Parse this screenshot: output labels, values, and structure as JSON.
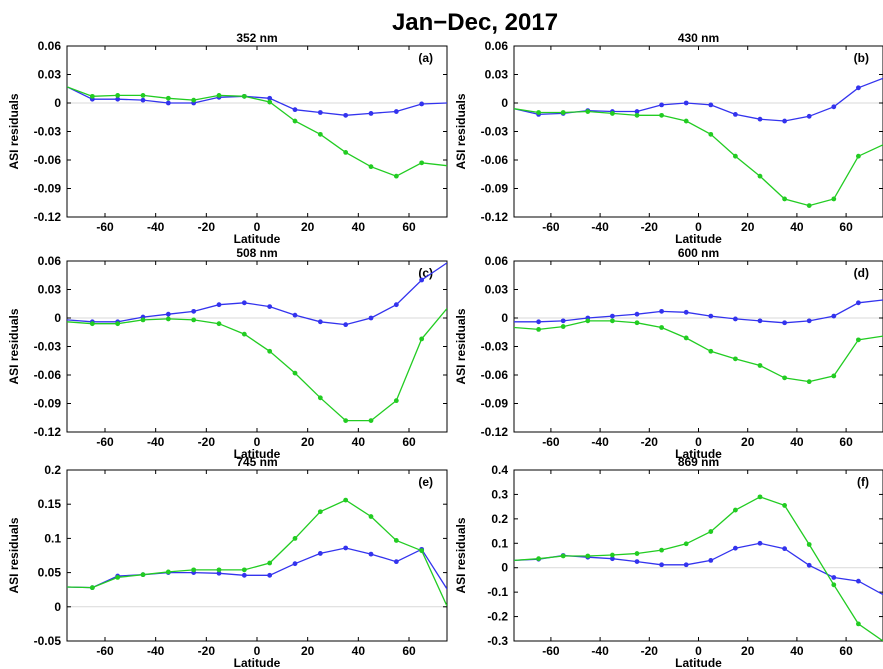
{
  "figure_title": "Jan−Dec, 2017",
  "series_colors": {
    "blue": "#3333ee",
    "green": "#22cc22"
  },
  "chart_data": [
    {
      "type": "line",
      "title": "352 nm",
      "panel_label": "(a)",
      "xlabel": "Latitude",
      "ylabel": "ASI residuals",
      "xlim": [
        -75,
        75
      ],
      "ylim": [
        -0.12,
        0.06
      ],
      "xticks": [
        -60,
        -40,
        -20,
        0,
        20,
        40,
        60
      ],
      "yticks": [
        -0.12,
        -0.09,
        -0.06,
        -0.03,
        0,
        0.03,
        0.06
      ],
      "ytick_labels": [
        "-0.12",
        "-0.09",
        "-0.06",
        "-0.03",
        "0",
        "0.03",
        "0.06"
      ],
      "x": [
        -75,
        -65,
        -55,
        -45,
        -35,
        -25,
        -15,
        -5,
        5,
        15,
        25,
        35,
        45,
        55,
        65,
        75
      ],
      "series": [
        {
          "color": "blue",
          "values": [
            0.017,
            0.004,
            0.004,
            0.003,
            0.0,
            0.0,
            0.006,
            0.007,
            0.005,
            -0.007,
            -0.01,
            -0.013,
            -0.011,
            -0.009,
            -0.001,
            0.0
          ]
        },
        {
          "color": "green",
          "values": [
            0.017,
            0.007,
            0.008,
            0.008,
            0.005,
            0.003,
            0.008,
            0.007,
            0.001,
            -0.019,
            -0.033,
            -0.052,
            -0.067,
            -0.077,
            -0.063,
            -0.066
          ]
        }
      ]
    },
    {
      "type": "line",
      "title": "430 nm",
      "panel_label": "(b)",
      "xlabel": "Latitude",
      "ylabel": "ASI residuals",
      "xlim": [
        -75,
        75
      ],
      "ylim": [
        -0.12,
        0.06
      ],
      "xticks": [
        -60,
        -40,
        -20,
        0,
        20,
        40,
        60
      ],
      "yticks": [
        -0.12,
        -0.09,
        -0.06,
        -0.03,
        0,
        0.03,
        0.06
      ],
      "ytick_labels": [
        "-0.12",
        "-0.09",
        "-0.06",
        "-0.03",
        "0",
        "0.03",
        "0.06"
      ],
      "x": [
        -75,
        -65,
        -55,
        -45,
        -35,
        -25,
        -15,
        -5,
        5,
        15,
        25,
        35,
        45,
        55,
        65,
        75
      ],
      "series": [
        {
          "color": "blue",
          "values": [
            -0.006,
            -0.012,
            -0.011,
            -0.008,
            -0.009,
            -0.009,
            -0.002,
            0.0,
            -0.002,
            -0.012,
            -0.017,
            -0.019,
            -0.014,
            -0.004,
            0.016,
            0.026
          ]
        },
        {
          "color": "green",
          "values": [
            -0.006,
            -0.01,
            -0.01,
            -0.009,
            -0.011,
            -0.013,
            -0.013,
            -0.019,
            -0.033,
            -0.056,
            -0.077,
            -0.101,
            -0.108,
            -0.101,
            -0.056,
            -0.044
          ]
        }
      ]
    },
    {
      "type": "line",
      "title": "508 nm",
      "panel_label": "(c)",
      "xlabel": "Latitude",
      "ylabel": "ASI residuals",
      "xlim": [
        -75,
        75
      ],
      "ylim": [
        -0.12,
        0.06
      ],
      "xticks": [
        -60,
        -40,
        -20,
        0,
        20,
        40,
        60
      ],
      "yticks": [
        -0.12,
        -0.09,
        -0.06,
        -0.03,
        0,
        0.03,
        0.06
      ],
      "ytick_labels": [
        "-0.12",
        "-0.09",
        "-0.06",
        "-0.03",
        "0",
        "0.03",
        "0.06"
      ],
      "x": [
        -75,
        -65,
        -55,
        -45,
        -35,
        -25,
        -15,
        -5,
        5,
        15,
        25,
        35,
        45,
        55,
        65,
        75
      ],
      "series": [
        {
          "color": "blue",
          "values": [
            -0.002,
            -0.004,
            -0.004,
            0.001,
            0.004,
            0.007,
            0.014,
            0.016,
            0.012,
            0.003,
            -0.004,
            -0.007,
            0.0,
            0.014,
            0.04,
            0.058
          ]
        },
        {
          "color": "green",
          "values": [
            -0.004,
            -0.006,
            -0.006,
            -0.002,
            -0.001,
            -0.002,
            -0.006,
            -0.017,
            -0.035,
            -0.058,
            -0.084,
            -0.108,
            -0.108,
            -0.087,
            -0.022,
            0.01
          ]
        }
      ]
    },
    {
      "type": "line",
      "title": "600 nm",
      "panel_label": "(d)",
      "xlabel": "Latitude",
      "ylabel": "ASI residuals",
      "xlim": [
        -75,
        75
      ],
      "ylim": [
        -0.12,
        0.06
      ],
      "xticks": [
        -60,
        -40,
        -20,
        0,
        20,
        40,
        60
      ],
      "yticks": [
        -0.12,
        -0.09,
        -0.06,
        -0.03,
        0,
        0.03,
        0.06
      ],
      "ytick_labels": [
        "-0.12",
        "-0.09",
        "-0.06",
        "-0.03",
        "0",
        "0.03",
        "0.06"
      ],
      "x": [
        -75,
        -65,
        -55,
        -45,
        -35,
        -25,
        -15,
        -5,
        5,
        15,
        25,
        35,
        45,
        55,
        65,
        75
      ],
      "series": [
        {
          "color": "blue",
          "values": [
            -0.004,
            -0.004,
            -0.003,
            0.0,
            0.002,
            0.004,
            0.007,
            0.006,
            0.002,
            -0.001,
            -0.003,
            -0.005,
            -0.003,
            0.002,
            0.016,
            0.019
          ]
        },
        {
          "color": "green",
          "values": [
            -0.01,
            -0.012,
            -0.009,
            -0.003,
            -0.003,
            -0.005,
            -0.01,
            -0.021,
            -0.035,
            -0.043,
            -0.05,
            -0.063,
            -0.067,
            -0.061,
            -0.023,
            -0.019
          ]
        }
      ]
    },
    {
      "type": "line",
      "title": "745 nm",
      "panel_label": "(e)",
      "xlabel": "Latitude",
      "ylabel": "ASI residuals",
      "xlim": [
        -75,
        75
      ],
      "ylim": [
        -0.05,
        0.2
      ],
      "xticks": [
        -60,
        -40,
        -20,
        0,
        20,
        40,
        60
      ],
      "yticks": [
        -0.05,
        0,
        0.05,
        0.1,
        0.15,
        0.2
      ],
      "ytick_labels": [
        "-0.05",
        "0",
        "0.05",
        "0.1",
        "0.15",
        "0.2"
      ],
      "x": [
        -75,
        -65,
        -55,
        -45,
        -35,
        -25,
        -15,
        -5,
        5,
        15,
        25,
        35,
        45,
        55,
        65,
        75
      ],
      "series": [
        {
          "color": "blue",
          "values": [
            0.029,
            0.028,
            0.045,
            0.047,
            0.05,
            0.05,
            0.049,
            0.046,
            0.046,
            0.063,
            0.078,
            0.086,
            0.077,
            0.066,
            0.084,
            0.026
          ]
        },
        {
          "color": "green",
          "values": [
            0.029,
            0.028,
            0.043,
            0.047,
            0.051,
            0.054,
            0.054,
            0.054,
            0.064,
            0.1,
            0.139,
            0.156,
            0.132,
            0.097,
            0.082,
            0.001
          ]
        }
      ]
    },
    {
      "type": "line",
      "title": "869 nm",
      "panel_label": "(f)",
      "xlabel": "Latitude",
      "ylabel": "ASI residuals",
      "xlim": [
        -75,
        75
      ],
      "ylim": [
        -0.3,
        0.4
      ],
      "xticks": [
        -60,
        -40,
        -20,
        0,
        20,
        40,
        60
      ],
      "yticks": [
        -0.3,
        -0.2,
        -0.1,
        0,
        0.1,
        0.2,
        0.3,
        0.4
      ],
      "ytick_labels": [
        "-0.3",
        "-0.2",
        "-0.1",
        "0",
        "0.1",
        "0.2",
        "0.3",
        "0.4"
      ],
      "x": [
        -75,
        -65,
        -55,
        -45,
        -35,
        -25,
        -15,
        -5,
        5,
        15,
        25,
        35,
        45,
        55,
        65,
        75
      ],
      "series": [
        {
          "color": "blue",
          "values": [
            0.03,
            0.035,
            0.05,
            0.043,
            0.037,
            0.025,
            0.012,
            0.012,
            0.03,
            0.08,
            0.1,
            0.078,
            0.01,
            -0.04,
            -0.055,
            -0.11
          ]
        },
        {
          "color": "green",
          "values": [
            0.03,
            0.037,
            0.048,
            0.048,
            0.052,
            0.058,
            0.072,
            0.098,
            0.148,
            0.236,
            0.29,
            0.255,
            0.095,
            -0.07,
            -0.23,
            -0.3
          ]
        }
      ]
    }
  ]
}
